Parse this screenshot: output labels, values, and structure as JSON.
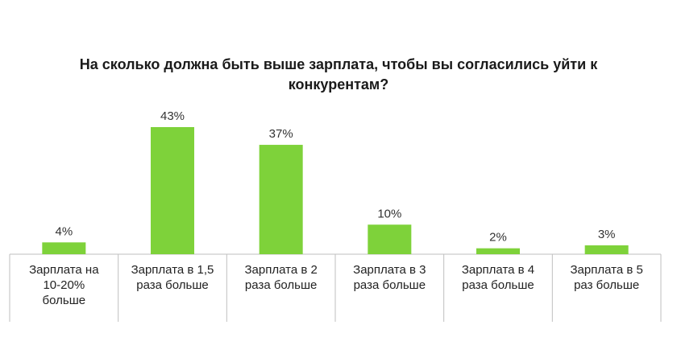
{
  "chart_data": {
    "type": "bar",
    "title": "На сколько должна быть выше зарплата, чтобы вы согласились уйти к конкурентам?",
    "categories": [
      "Зарплата на 10-20% больше",
      "Зарплата в 1,5 раза больше",
      "Зарплата в 2 раза больше",
      "Зарплата в 3 раза больше",
      "Зарплата в 4 раза больше",
      "Зарплата в 5 раз больше"
    ],
    "values": [
      4,
      43,
      37,
      10,
      2,
      3
    ],
    "data_labels": [
      "4%",
      "43%",
      "37%",
      "10%",
      "2%",
      "3%"
    ],
    "ylim": [
      0,
      43
    ],
    "bar_color": "#7ed23a",
    "grid": false,
    "legend": "none"
  }
}
